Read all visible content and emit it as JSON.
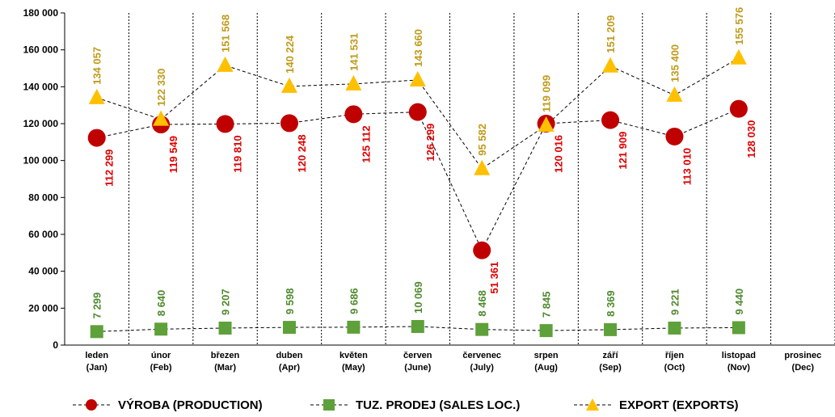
{
  "chart_data": {
    "type": "line",
    "categories": [
      [
        "leden",
        "(Jan)"
      ],
      [
        "únor",
        "(Feb)"
      ],
      [
        "březen",
        "(Mar)"
      ],
      [
        "duben",
        "(Apr)"
      ],
      [
        "květen",
        "(May)"
      ],
      [
        "červen",
        "(June)"
      ],
      [
        "červenec",
        "(July)"
      ],
      [
        "srpen",
        "(Aug)"
      ],
      [
        "září",
        "(Sep)"
      ],
      [
        "říjen",
        "(Oct)"
      ],
      [
        "listopad",
        "(Nov)"
      ],
      [
        "prosinec",
        "(Dec)"
      ]
    ],
    "ylim": [
      0,
      180000
    ],
    "yticks": [
      0,
      20000,
      40000,
      60000,
      80000,
      100000,
      120000,
      140000,
      160000,
      180000
    ],
    "ytick_labels": [
      "0",
      "20 000",
      "40 000",
      "60 000",
      "80 000",
      "100 000",
      "120 000",
      "140 000",
      "160 000",
      "180 000"
    ],
    "grid": "vertical dashed",
    "legend_position": "bottom",
    "series": [
      {
        "name": "VÝROBA (PRODUCTION)",
        "marker": "circle",
        "color": "#c00000",
        "label_color": "#e00000",
        "values": [
          112299,
          119549,
          119810,
          120248,
          125112,
          126299,
          51361,
          120016,
          121909,
          113010,
          128030,
          null
        ],
        "labels": [
          "112 299",
          "119 549",
          "119 810",
          "120 248",
          "125 112",
          "126 299",
          "51 361",
          "120 016",
          "121 909",
          "113 010",
          "128 030",
          ""
        ]
      },
      {
        "name": "TUZ. PRODEJ (SALES LOC.)",
        "marker": "square",
        "color": "#5ea03a",
        "label_color": "#4f8a2e",
        "values": [
          7299,
          8640,
          9207,
          9598,
          9686,
          10069,
          8468,
          7845,
          8369,
          9221,
          9440,
          null
        ],
        "labels": [
          "7 299",
          "8 640",
          "9 207",
          "9 598",
          "9 686",
          "10 069",
          "8 468",
          "7 845",
          "8 369",
          "9 221",
          "9 440",
          ""
        ]
      },
      {
        "name": "EXPORT (EXPORTS)",
        "marker": "triangle",
        "color": "#ffc000",
        "label_color": "#c09a1a",
        "values": [
          134057,
          122330,
          151568,
          140224,
          141531,
          143660,
          95582,
          119099,
          151209,
          135400,
          155576,
          null
        ],
        "labels": [
          "134 057",
          "122 330",
          "151 568",
          "140 224",
          "141 531",
          "143 660",
          "95 582",
          "119 099",
          "151 209",
          "135 400",
          "155 576",
          ""
        ]
      }
    ]
  }
}
